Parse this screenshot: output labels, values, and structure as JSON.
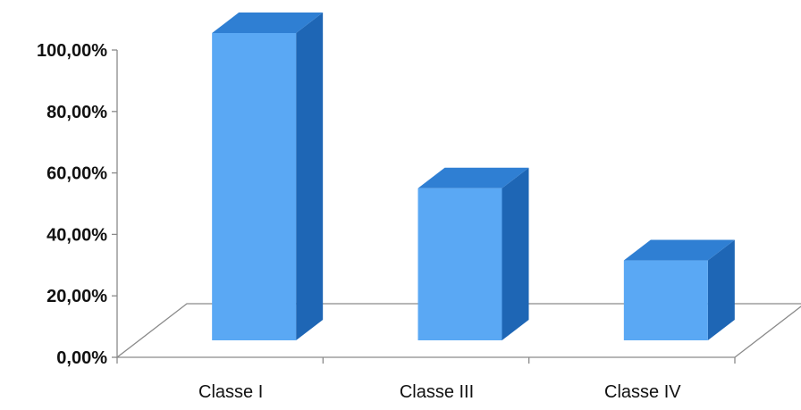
{
  "chart_data": {
    "type": "bar",
    "categories": [
      "Classe I",
      "Classe III",
      "Classe IV"
    ],
    "values": [
      100,
      49.5,
      26
    ],
    "y_ticks": [
      "0,00%",
      "20,00%",
      "40,00%",
      "60,00%",
      "80,00%",
      "100,00%"
    ],
    "ylim": [
      0,
      100
    ],
    "grid": false,
    "three_d": true,
    "colors": {
      "front": "#5aa8f4",
      "side": "#1e66b5",
      "top": "#2f7fd3",
      "axis": "#8a8a8a"
    }
  }
}
